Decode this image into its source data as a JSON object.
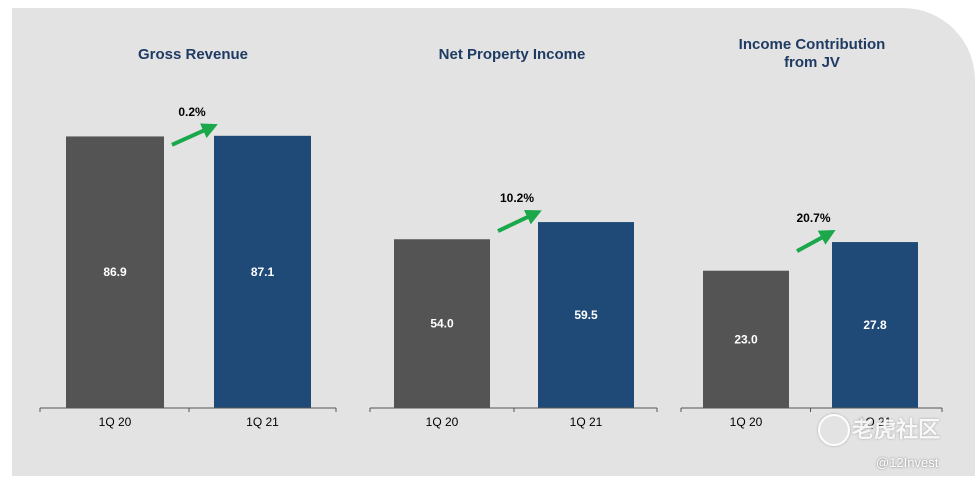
{
  "colors": {
    "prior": "#545454",
    "current": "#1f4a78",
    "arrow": "#1aa84a",
    "title": "#1f3b63",
    "panel": "#e3e3e3"
  },
  "chart_data": [
    {
      "type": "bar",
      "title": "Gross Revenue",
      "categories": [
        "1Q 20",
        "1Q 21"
      ],
      "values": [
        86.9,
        87.1
      ],
      "value_labels": [
        "86.9",
        "87.1"
      ],
      "change_label": "0.2%",
      "ylim": [
        0,
        96
      ],
      "grid": false
    },
    {
      "type": "bar",
      "title": "Net Property Income",
      "categories": [
        "1Q 20",
        "1Q 21"
      ],
      "values": [
        54.0,
        59.5
      ],
      "value_labels": [
        "54.0",
        "59.5"
      ],
      "change_label": "10.2%",
      "ylim": [
        0,
        96
      ],
      "grid": false
    },
    {
      "type": "bar",
      "title_lines": [
        "Income Contribution",
        "from JV"
      ],
      "categories": [
        "1Q 20",
        "1Q 21"
      ],
      "values": [
        23.0,
        27.8
      ],
      "value_labels": [
        "23.0",
        "27.8"
      ],
      "change_label": "20.7%",
      "ylim": [
        0,
        32
      ],
      "grid": false
    }
  ],
  "watermark": {
    "brand": "老虎社区",
    "handle": "@12Invest"
  }
}
